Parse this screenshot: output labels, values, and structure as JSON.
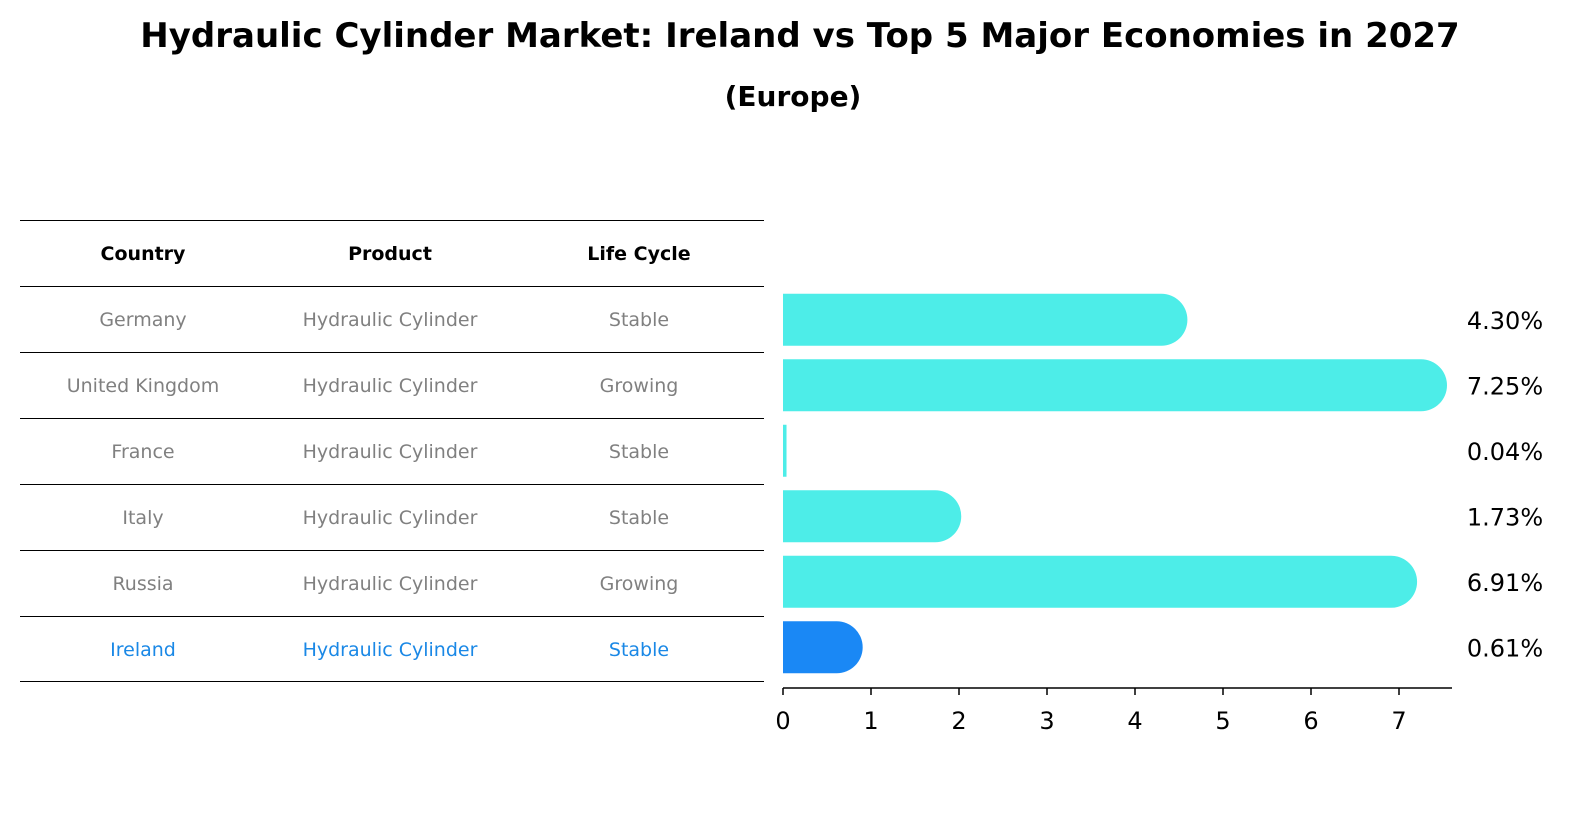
{
  "page": {
    "title": "Hydraulic Cylinder Market: Ireland vs Top 5 Major Economies in 2027",
    "subtitle": "(Europe)"
  },
  "table": {
    "headers": [
      "Country",
      "Product",
      "Life Cycle"
    ],
    "rows": [
      {
        "country": "Germany",
        "product": "Hydraulic Cylinder",
        "life_cycle": "Stable"
      },
      {
        "country": "United Kingdom",
        "product": "Hydraulic Cylinder",
        "life_cycle": "Growing"
      },
      {
        "country": "France",
        "product": "Hydraulic Cylinder",
        "life_cycle": "Stable"
      },
      {
        "country": "Italy",
        "product": "Hydraulic Cylinder",
        "life_cycle": "Stable"
      },
      {
        "country": "Russia",
        "product": "Hydraulic Cylinder",
        "life_cycle": "Growing"
      },
      {
        "country": "Ireland",
        "product": "Hydraulic Cylinder",
        "life_cycle": "Stable"
      }
    ],
    "highlight_row": 5,
    "text_color": "#808080",
    "highlight_color": "#1a88e6"
  },
  "chart_data": {
    "type": "bar",
    "orientation": "horizontal",
    "categories": [
      "Germany",
      "United Kingdom",
      "France",
      "Italy",
      "Russia",
      "Ireland"
    ],
    "values": [
      4.3,
      7.25,
      0.04,
      1.73,
      6.91,
      0.61
    ],
    "value_labels": [
      "4.30%",
      "7.25%",
      "0.04%",
      "1.73%",
      "6.91%",
      "0.61%"
    ],
    "xlim": [
      0,
      7.6
    ],
    "xticks": [
      "0",
      "1",
      "2",
      "3",
      "4",
      "5",
      "6",
      "7"
    ],
    "grid": false,
    "bar_color": "#4dede8",
    "highlight_color": "#1a88f5",
    "highlight_index": 5
  }
}
